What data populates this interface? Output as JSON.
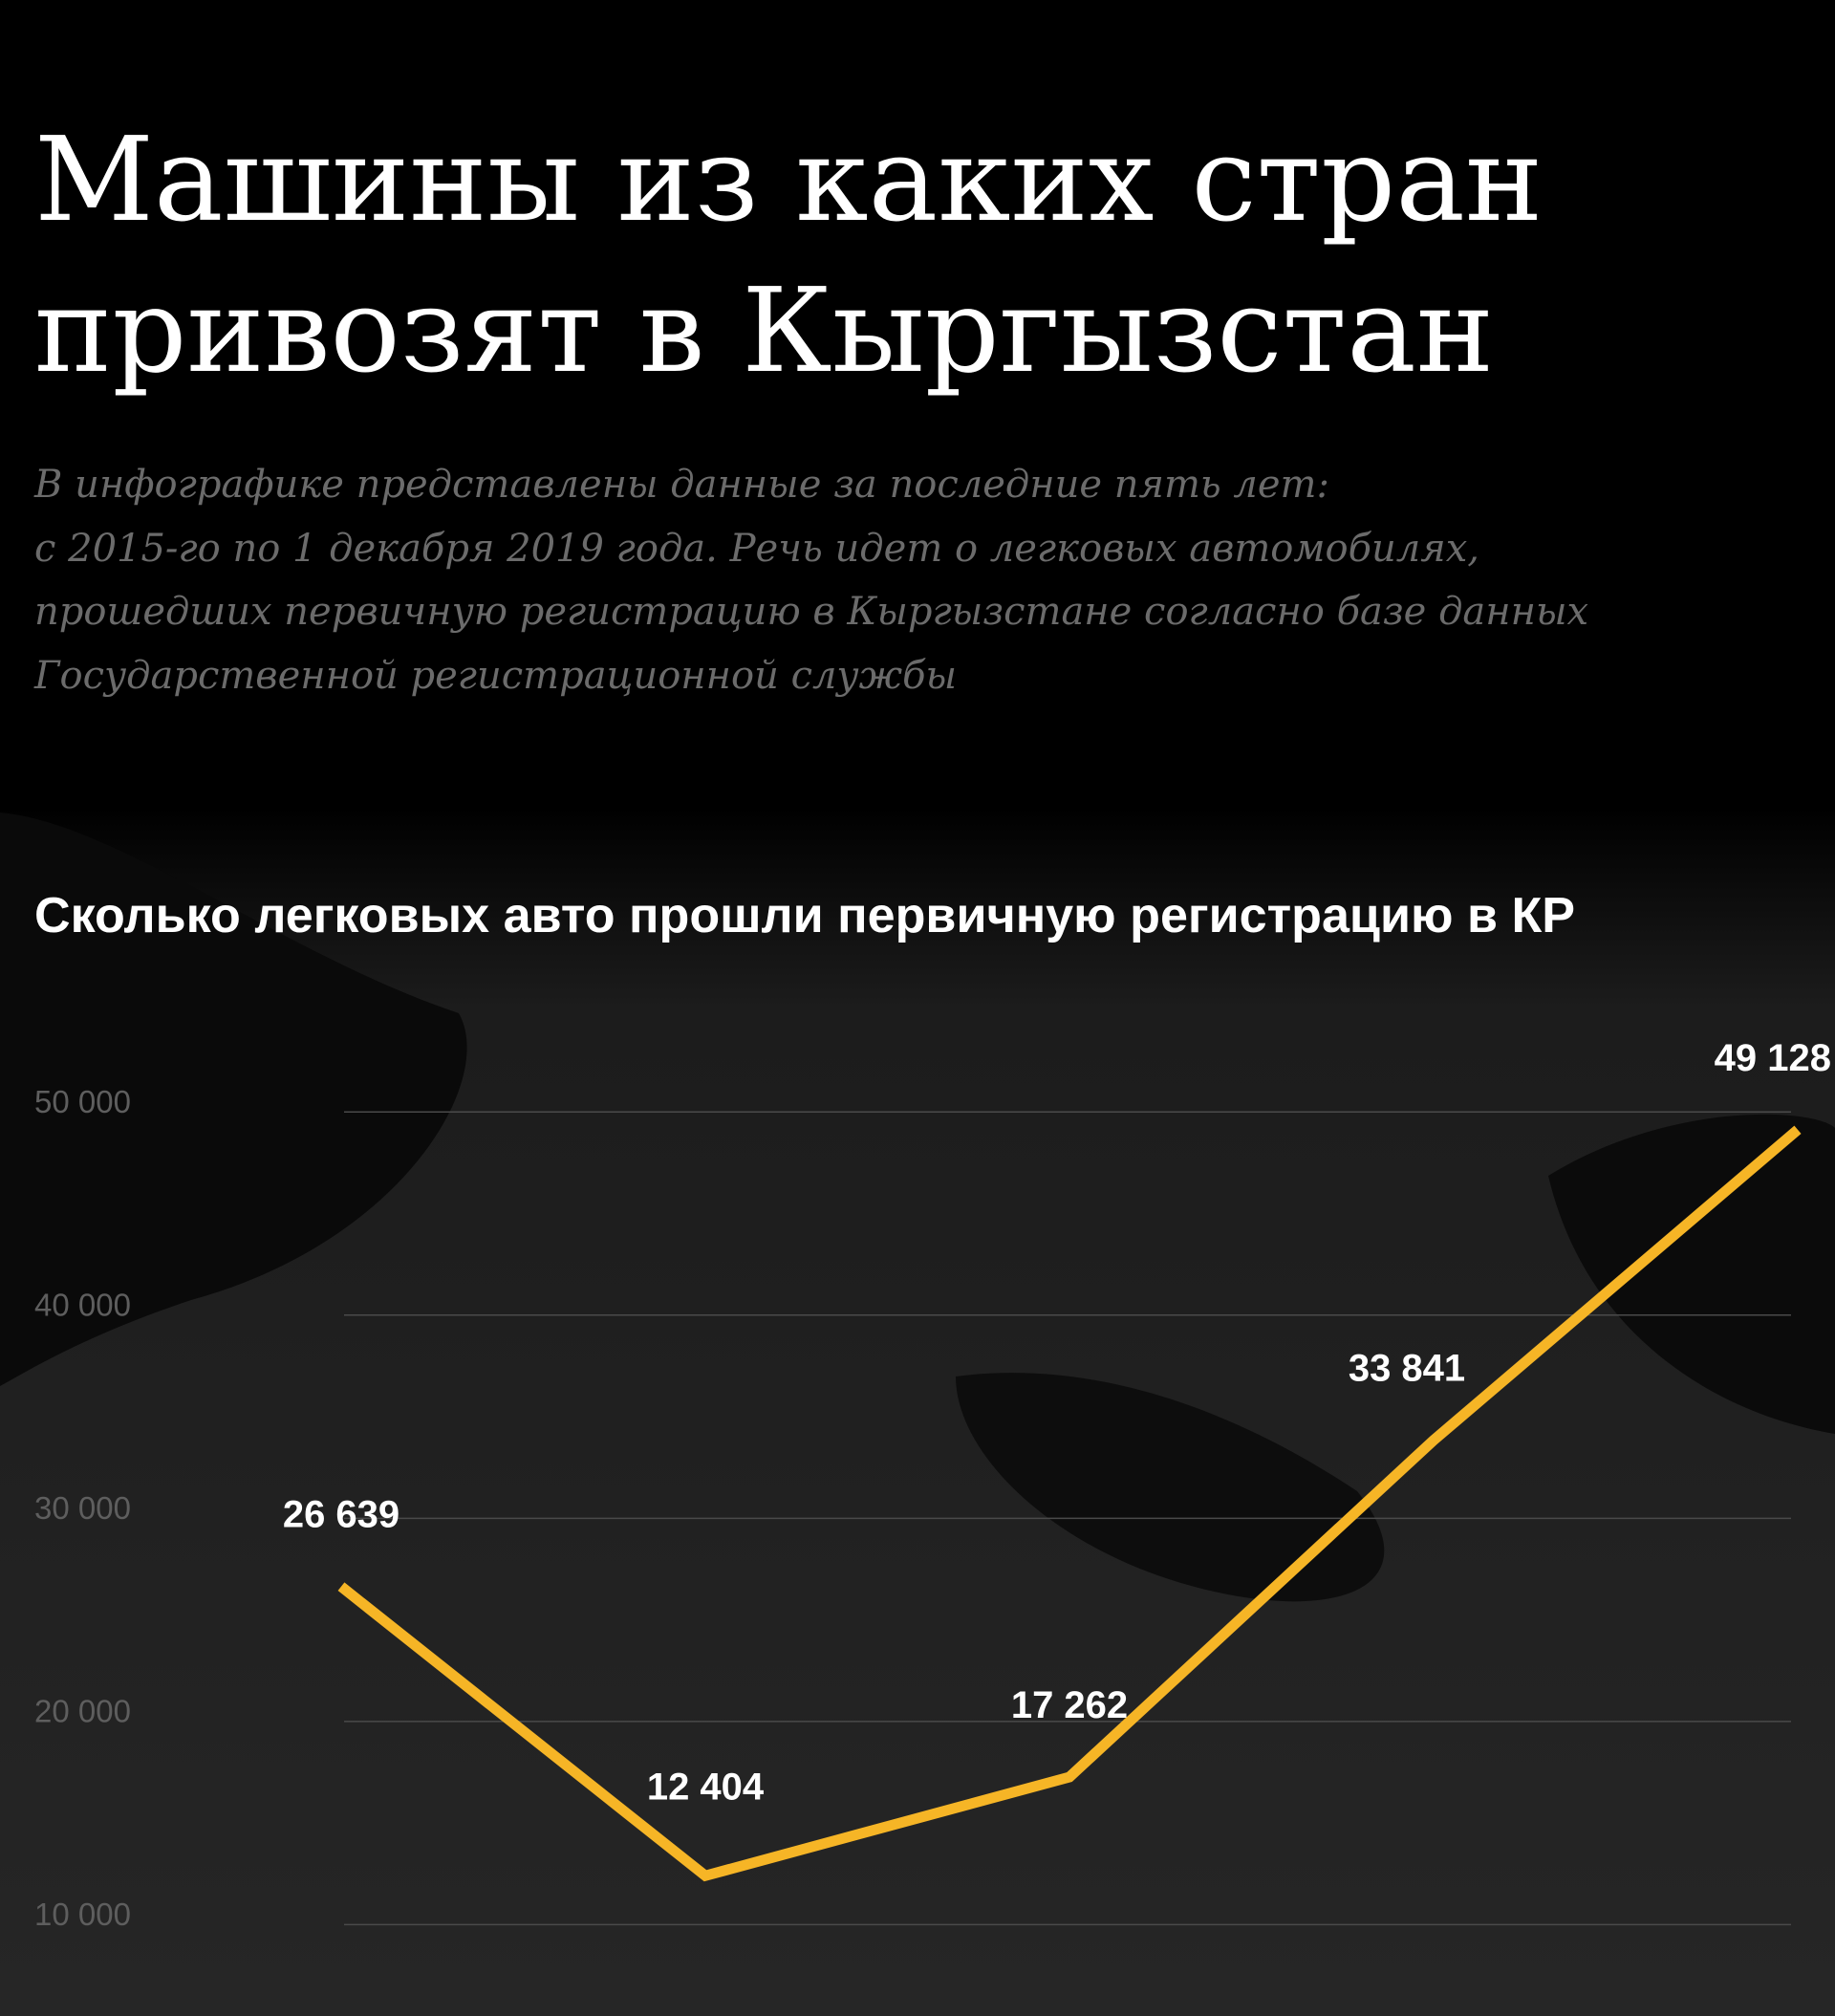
{
  "header": {
    "title_lines": [
      "Машины из каких стран",
      "привозят в Кыргызстан"
    ],
    "description_lines": [
      "В инфографике представлены данные за последние пять лет:",
      "с 2015-го по 1 декабря 2019 года. Речь идет о легковых автомобилях,",
      "прошедших первичную регистрацию в Кыргызстане согласно базе данных",
      "Государственной регистрационной службы"
    ]
  },
  "chart_data": {
    "type": "line",
    "title": "Сколько легковых авто прошли первичную регистрацию в КР",
    "values": [
      26639,
      12404,
      17262,
      33841,
      49128
    ],
    "value_labels": [
      "26 639",
      "12 404",
      "17 262",
      "33 841",
      "49 128"
    ],
    "color": "#f6b526",
    "ylim": [
      5500,
      55000
    ],
    "yticks": [
      {
        "value": 10000,
        "label": "10 000"
      },
      {
        "value": 20000,
        "label": "20 000"
      },
      {
        "value": 30000,
        "label": "30 000"
      },
      {
        "value": 40000,
        "label": "40 000"
      },
      {
        "value": 50000,
        "label": "50 000"
      }
    ],
    "grid": true
  }
}
